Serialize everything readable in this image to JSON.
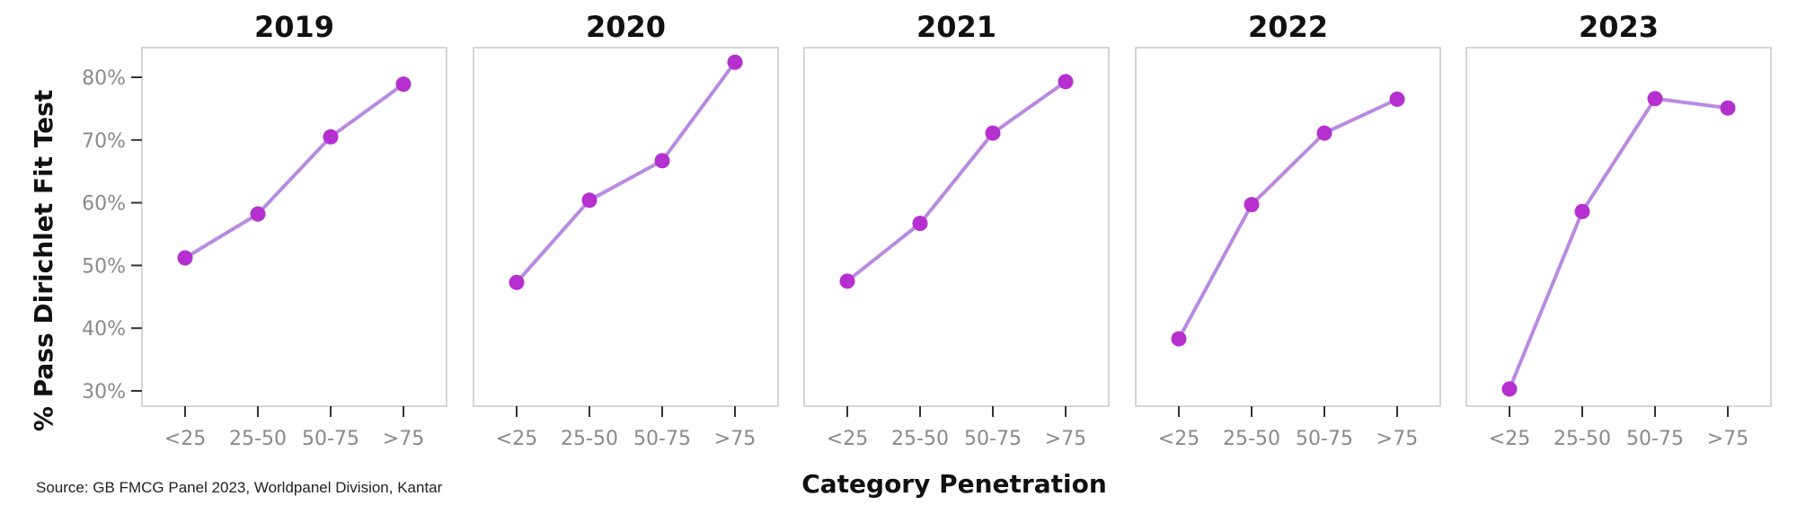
{
  "chart_data": {
    "type": "line",
    "layout": "small-multiples",
    "xlabel": "Category Penetration",
    "ylabel": "% Pass Dirichlet Fit Test",
    "categories": [
      "<25",
      "25-50",
      "50-75",
      ">75"
    ],
    "ylim": [
      0.28,
      0.85
    ],
    "yticks": [
      0.3,
      0.4,
      0.5,
      0.6,
      0.7,
      0.8
    ],
    "ytick_labels": [
      "30%",
      "40%",
      "50%",
      "60%",
      "70%",
      "80%"
    ],
    "grid": false,
    "legend": "none",
    "line_color": "#b98ae0",
    "marker_color": "#b62fcf",
    "panels": [
      {
        "title": "2019",
        "values": [
          0.512,
          0.582,
          0.705,
          0.789
        ]
      },
      {
        "title": "2020",
        "values": [
          0.473,
          0.604,
          0.667,
          0.824
        ]
      },
      {
        "title": "2021",
        "values": [
          0.475,
          0.567,
          0.711,
          0.793
        ]
      },
      {
        "title": "2022",
        "values": [
          0.383,
          0.597,
          0.711,
          0.765
        ]
      },
      {
        "title": "2023",
        "values": [
          0.303,
          0.586,
          0.766,
          0.751
        ]
      }
    ]
  },
  "footer": {
    "source": "Source: GB FMCG Panel 2023, Worldpanel Division, Kantar"
  }
}
